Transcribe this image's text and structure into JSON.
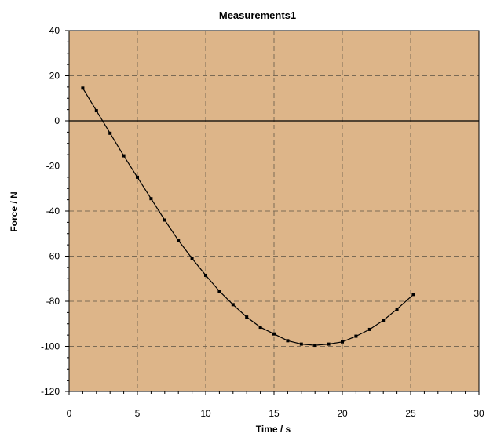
{
  "chart_data": {
    "type": "line",
    "title": "Measurements1",
    "xlabel": "Time / s",
    "ylabel": "Force / N",
    "xlim": [
      0,
      30
    ],
    "ylim": [
      -120,
      40
    ],
    "xticks": [
      0,
      5,
      10,
      15,
      20,
      25,
      30
    ],
    "yticks": [
      40,
      20,
      0,
      -20,
      -40,
      -60,
      -80,
      -100,
      -120
    ],
    "grid": true,
    "zero_line": true,
    "plot_background": "#DDB589",
    "line_color": "#000000",
    "series": [
      {
        "x": [
          1,
          2,
          3,
          4,
          5,
          6,
          7,
          8,
          9,
          10,
          11,
          12,
          13,
          14,
          15,
          16,
          17,
          18,
          19,
          20,
          21,
          22,
          23,
          24,
          25.2
        ],
        "y": [
          14.5,
          4.5,
          -5.5,
          -15.5,
          -25,
          -34.5,
          -44,
          -53,
          -61,
          -68.5,
          -75.5,
          -81.5,
          -87,
          -91.5,
          -94.5,
          -97.5,
          -99,
          -99.5,
          -99,
          -98,
          -95.5,
          -92.5,
          -88.5,
          -83.5,
          -77
        ]
      }
    ]
  }
}
